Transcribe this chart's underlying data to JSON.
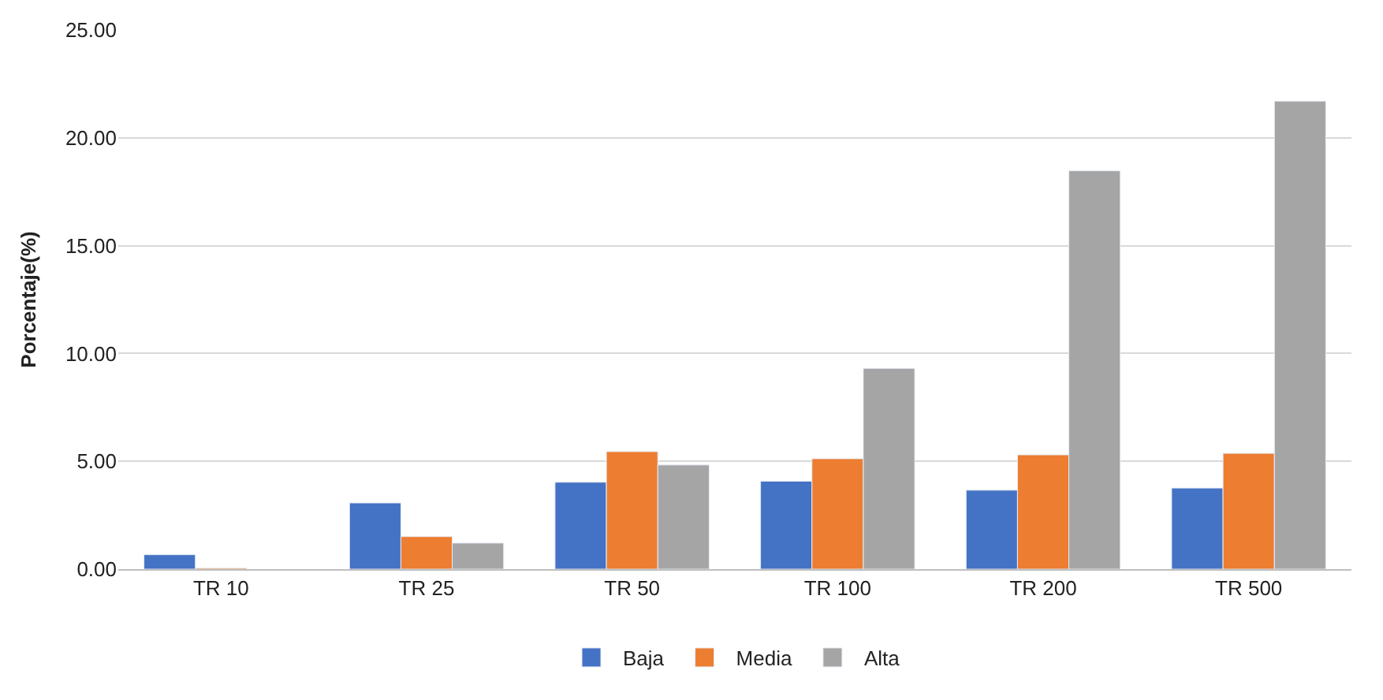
{
  "chart_data": {
    "type": "bar",
    "ylabel": "Porcentaje(%)",
    "categories": [
      "TR 10",
      "TR 25",
      "TR 50",
      "TR 100",
      "TR 200",
      "TR 500"
    ],
    "series": [
      {
        "name": "Baja",
        "color": "#4472c4",
        "values": [
          0.67,
          3.07,
          4.03,
          4.08,
          3.66,
          3.76
        ]
      },
      {
        "name": "Media",
        "color": "#ed7d31",
        "values": [
          0.05,
          1.51,
          5.45,
          5.12,
          5.3,
          5.37
        ]
      },
      {
        "name": "Alta",
        "color": "#a5a5a5",
        "values": [
          null,
          1.21,
          4.83,
          9.31,
          18.47,
          21.7
        ]
      }
    ],
    "ylim": [
      0,
      25
    ],
    "yticks": [
      {
        "value": 0,
        "label": "0.00"
      },
      {
        "value": 5,
        "label": "5.00"
      },
      {
        "value": 10,
        "label": "10.00"
      },
      {
        "value": 15,
        "label": "15.00"
      },
      {
        "value": 20,
        "label": "20.00"
      },
      {
        "value": 25,
        "label": "25.00"
      }
    ],
    "grid": "y",
    "legend": "bottom"
  }
}
